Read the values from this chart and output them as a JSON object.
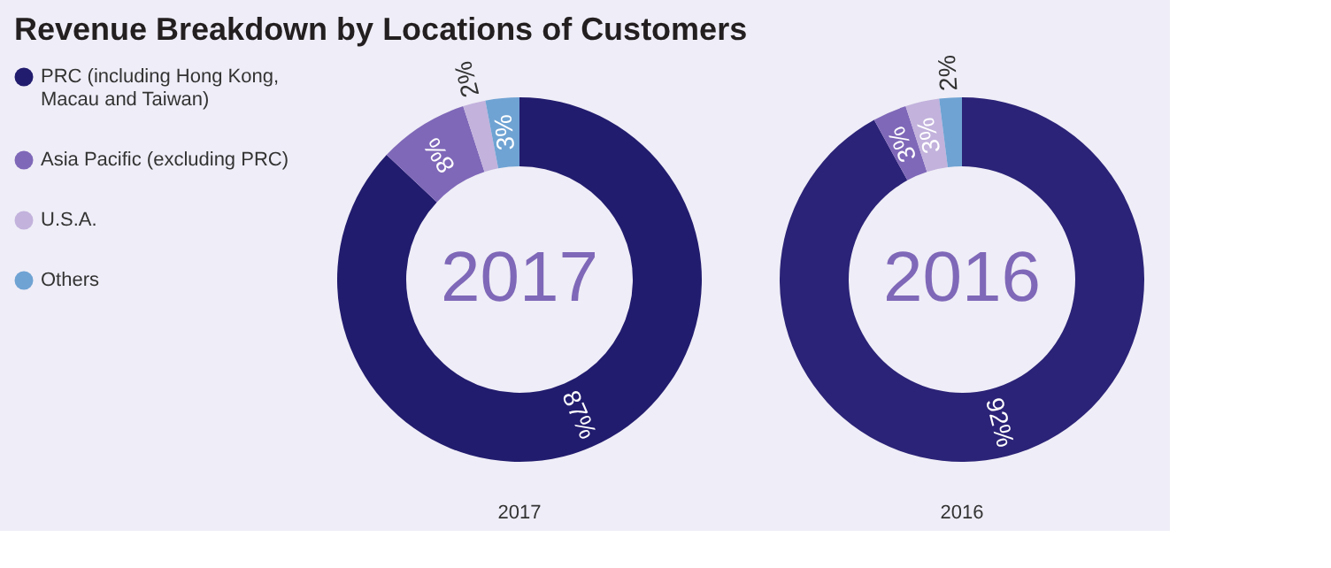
{
  "chart_data": [
    {
      "type": "donut",
      "title": "Revenue Breakdown by Locations of Customers",
      "xlabel": "2017",
      "annotations": [
        "2017"
      ],
      "legend": "left",
      "categories": [
        "PRC (including Hong Kong, Macau and Taiwan)",
        "Asia Pacific (excluding PRC)",
        "U.S.A.",
        "Others"
      ],
      "values": [
        87,
        8,
        2,
        3
      ],
      "value_labels": [
        "87%",
        "8%",
        "2%",
        "3%"
      ],
      "colors": [
        "#221c6e",
        "#7f68b8",
        "#c2b2dc",
        "#6fa3d3"
      ]
    },
    {
      "type": "donut",
      "xlabel": "2016",
      "annotations": [
        "2016"
      ],
      "values": [
        92,
        3,
        3,
        2
      ],
      "value_labels": [
        "92%",
        "3%",
        "3%",
        "2%"
      ],
      "colors": [
        "#2b2377",
        "#7f68b8",
        "#c2b2dc",
        "#6fa3d3"
      ]
    }
  ]
}
